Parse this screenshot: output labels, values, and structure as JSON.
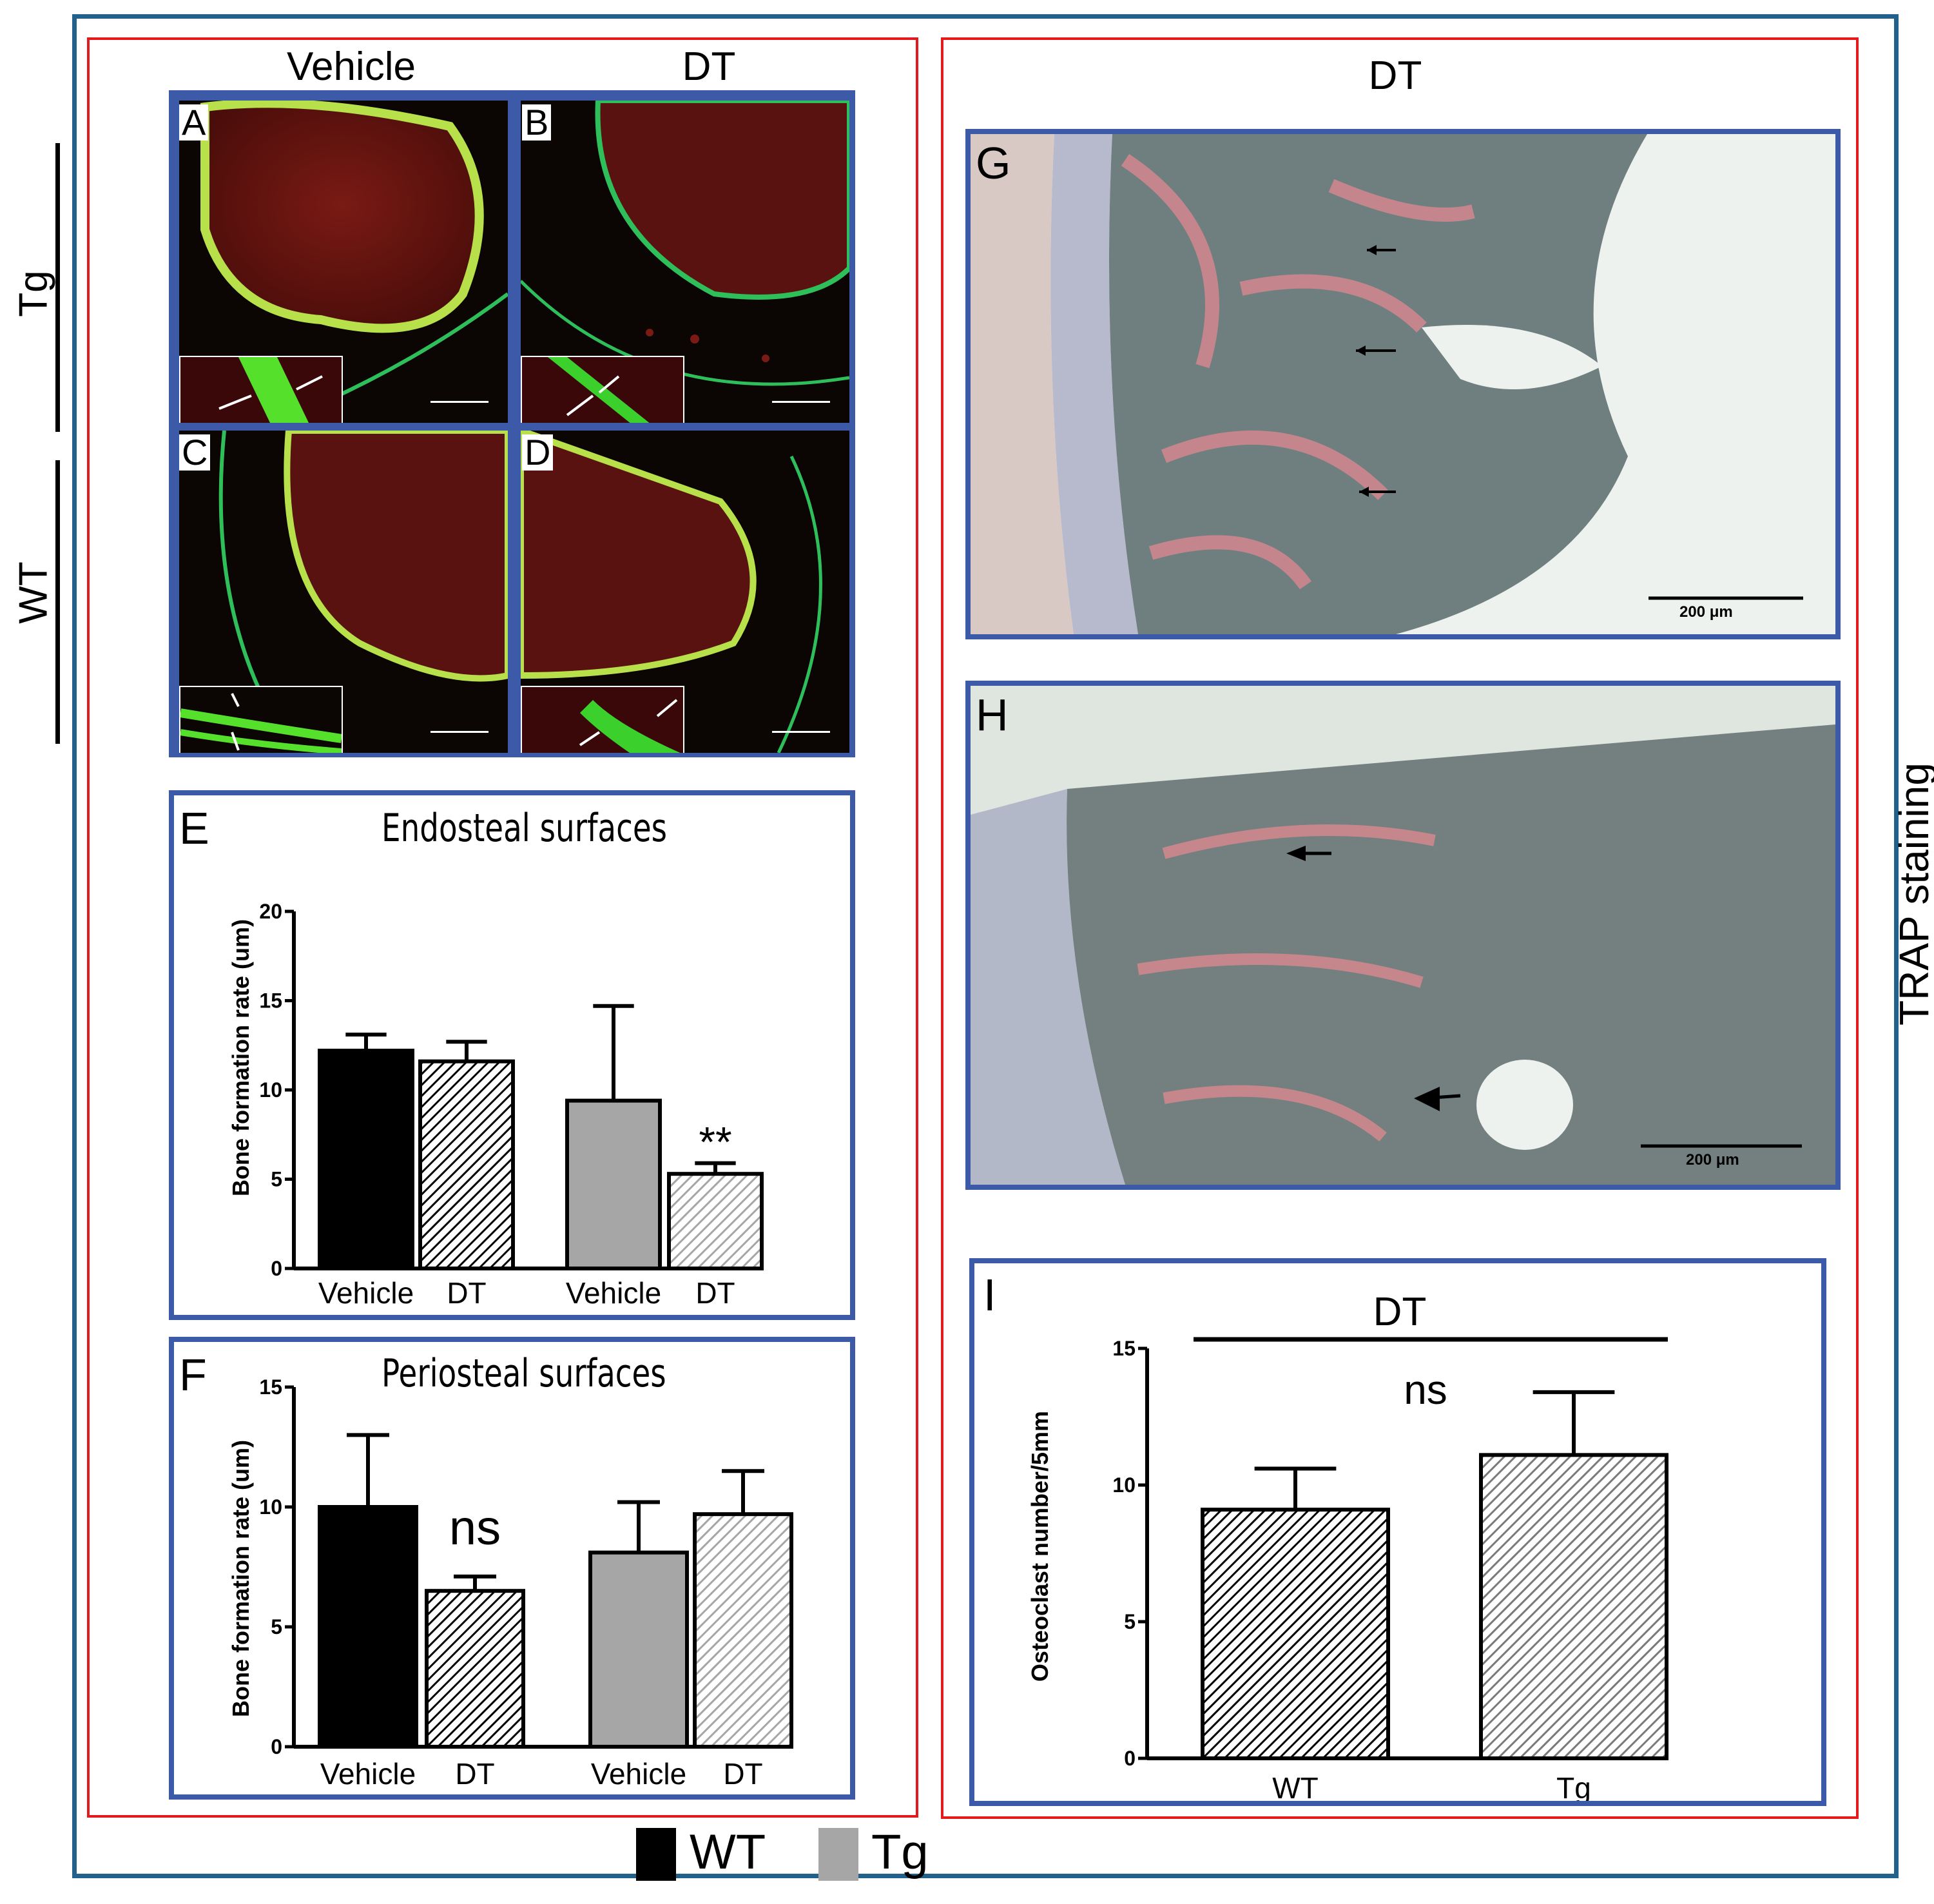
{
  "figure": {
    "column_labels": [
      "Vehicle",
      "DT"
    ],
    "row_labels": [
      "Tg",
      "WT"
    ],
    "right_header": "DT",
    "right_side_label": "TRAP staining",
    "micrograph_panels": [
      {
        "letter": "A",
        "group": "Tg",
        "treatment": "Vehicle"
      },
      {
        "letter": "B",
        "group": "Tg",
        "treatment": "DT"
      },
      {
        "letter": "C",
        "group": "WT",
        "treatment": "Vehicle"
      },
      {
        "letter": "D",
        "group": "WT",
        "treatment": "DT"
      }
    ],
    "trap_panels": [
      {
        "letter": "G",
        "scale_bar": "200 μm"
      },
      {
        "letter": "H",
        "scale_bar": "200 μm"
      }
    ],
    "legend": [
      {
        "label": "WT",
        "color": "#000000"
      },
      {
        "label": "Tg",
        "color": "#a6a6a6"
      }
    ],
    "colors": {
      "outer_frame": "#21618c",
      "group_frame": "#e31a1c",
      "panel_frame": "#3d5aa8",
      "wt_fill": "#000000",
      "tg_fill": "#a6a6a6"
    }
  },
  "chart_data": [
    {
      "panel": "E",
      "type": "bar",
      "title": "Endosteal surfaces",
      "ylabel": "Bone formation rate (um)",
      "ylim": [
        0,
        20
      ],
      "yticks": [
        "0",
        "5",
        "10",
        "15",
        "20"
      ],
      "categories": [
        "Vehicle",
        "DT",
        "Vehicle",
        "DT"
      ],
      "groups": [
        "WT",
        "WT",
        "Tg",
        "Tg"
      ],
      "values": [
        12.2,
        11.6,
        9.4,
        5.3
      ],
      "errors": [
        0.9,
        1.1,
        5.3,
        0.6
      ],
      "annotations": [
        {
          "bar": 3,
          "text": "**"
        }
      ]
    },
    {
      "panel": "F",
      "type": "bar",
      "title": "Periosteal surfaces",
      "ylabel": "Bone formation rate (um)",
      "ylim": [
        0,
        15
      ],
      "yticks": [
        "0",
        "5",
        "10",
        "15"
      ],
      "categories": [
        "Vehicle",
        "DT",
        "Vehicle",
        "DT"
      ],
      "groups": [
        "WT",
        "WT",
        "Tg",
        "Tg"
      ],
      "values": [
        10.0,
        6.5,
        8.1,
        9.7
      ],
      "errors": [
        3.0,
        0.6,
        2.1,
        1.8
      ],
      "annotations": [
        {
          "bar": 1,
          "text": "ns"
        }
      ]
    },
    {
      "panel": "I",
      "type": "bar",
      "title": "DT",
      "ylabel": "Osteoclast number/5mm",
      "ylim": [
        0,
        15
      ],
      "yticks": [
        "0",
        "5",
        "10",
        "15"
      ],
      "categories": [
        "WT",
        "Tg"
      ],
      "values": [
        9.1,
        11.1
      ],
      "errors": [
        1.5,
        2.3
      ],
      "annotations": [
        {
          "text": "ns"
        }
      ]
    }
  ]
}
